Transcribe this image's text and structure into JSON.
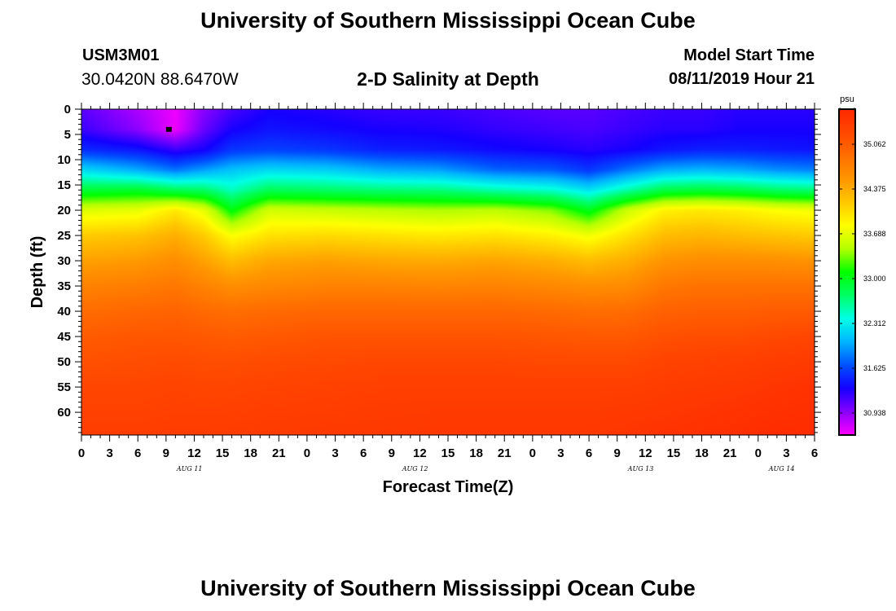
{
  "header": {
    "title": "University of Southern Mississippi Ocean Cube",
    "station_id": "USM3M01",
    "station_coords": "30.0420N 88.6470W",
    "subtitle": "2-D Salinity at Depth",
    "model_start_label": "Model Start Time",
    "model_start_value": "08/11/2019 Hour 21"
  },
  "footer": {
    "title": "University of Southern Mississippi Ocean Cube"
  },
  "chart_data": {
    "type": "heatmap",
    "title": "2-D Salinity at Depth",
    "xlabel": "Forecast Time(Z)",
    "ylabel": "Depth (ft)",
    "y_inverted": true,
    "y_range": [
      0,
      64.5
    ],
    "y_ticks": [
      0,
      5,
      10,
      15,
      20,
      25,
      30,
      35,
      40,
      45,
      50,
      55,
      60
    ],
    "x_range_hours": [
      0,
      78
    ],
    "x_tick_labels": [
      "0",
      "3",
      "6",
      "9",
      "12",
      "15",
      "18",
      "21",
      "0",
      "3",
      "6",
      "9",
      "12",
      "15",
      "18",
      "21",
      "0",
      "3",
      "6",
      "9",
      "12",
      "15",
      "18",
      "21",
      "0",
      "3",
      "6"
    ],
    "date_labels": [
      {
        "text": "AUG 11",
        "hour": 11.5
      },
      {
        "text": "AUG 12",
        "hour": 35.5
      },
      {
        "text": "AUG 13",
        "hour": 59.5
      },
      {
        "text": "AUG 14",
        "hour": 74.5
      }
    ],
    "colorbar": {
      "unit": "psu",
      "min": 30.6,
      "max": 35.6,
      "labels": [
        "35.062",
        "34.375",
        "33.688",
        "33.000",
        "32.312",
        "31.625",
        "30.938"
      ],
      "colors": [
        "#ff00ff",
        "#8a00ff",
        "#1400ff",
        "#0050ff",
        "#00b4ff",
        "#00ffe6",
        "#00ff64",
        "#00ff00",
        "#b4ff00",
        "#ffff00",
        "#ffc800",
        "#ff9600",
        "#ff6e00",
        "#ff4600",
        "#ff2800"
      ]
    },
    "marker": {
      "hour": 9.3,
      "depth": 4
    },
    "depth_levels_ft": [
      0,
      4,
      8,
      12,
      16,
      20,
      25,
      30,
      35,
      40,
      45,
      50,
      55,
      60,
      64.5
    ],
    "time_columns_hours": [
      0,
      6,
      10,
      13,
      16,
      20,
      26,
      32,
      38,
      44,
      50,
      54,
      58,
      62,
      66,
      70,
      74,
      78
    ],
    "values": [
      [
        31.1,
        31.2,
        31.5,
        32.2,
        32.9,
        33.65,
        34.15,
        34.45,
        34.7,
        34.9,
        35.05,
        35.15,
        35.25,
        35.3,
        35.35
      ],
      [
        30.85,
        30.95,
        31.4,
        32.0,
        32.95,
        33.7,
        34.2,
        34.5,
        34.75,
        34.95,
        35.1,
        35.18,
        35.25,
        35.3,
        35.35
      ],
      [
        30.65,
        30.65,
        31.2,
        31.8,
        32.8,
        33.95,
        34.35,
        34.6,
        34.8,
        34.98,
        35.1,
        35.2,
        35.28,
        35.32,
        35.36
      ],
      [
        30.95,
        31.05,
        31.3,
        31.95,
        32.75,
        33.7,
        34.15,
        34.45,
        34.7,
        34.92,
        35.08,
        35.18,
        35.25,
        35.32,
        35.36
      ],
      [
        31.15,
        31.3,
        31.55,
        32.1,
        32.5,
        33.05,
        33.8,
        34.25,
        34.6,
        34.88,
        35.05,
        35.18,
        35.26,
        35.32,
        35.37
      ],
      [
        31.3,
        31.4,
        31.6,
        32.2,
        32.8,
        33.6,
        34.0,
        34.4,
        34.65,
        34.92,
        35.08,
        35.2,
        35.28,
        35.34,
        35.38
      ],
      [
        31.25,
        31.35,
        31.55,
        32.15,
        32.75,
        33.55,
        34.05,
        34.45,
        34.7,
        34.95,
        35.12,
        35.22,
        35.3,
        35.35,
        35.4
      ],
      [
        31.2,
        31.3,
        31.45,
        32.0,
        32.7,
        33.5,
        34.0,
        34.4,
        34.7,
        34.95,
        35.12,
        35.24,
        35.32,
        35.37,
        35.4
      ],
      [
        31.2,
        31.28,
        31.42,
        31.95,
        32.68,
        33.45,
        33.95,
        34.38,
        34.68,
        34.95,
        35.12,
        35.24,
        35.32,
        35.38,
        35.42
      ],
      [
        31.15,
        31.22,
        31.35,
        31.75,
        32.55,
        33.5,
        34.0,
        34.42,
        34.7,
        34.95,
        35.12,
        35.24,
        35.32,
        35.38,
        35.42
      ],
      [
        31.1,
        31.18,
        31.3,
        31.7,
        32.45,
        33.35,
        33.9,
        34.35,
        34.65,
        34.92,
        35.1,
        35.22,
        35.32,
        35.38,
        35.42
      ],
      [
        31.1,
        31.15,
        31.25,
        31.55,
        32.25,
        33.0,
        33.75,
        34.25,
        34.6,
        34.88,
        35.08,
        35.22,
        35.32,
        35.38,
        35.42
      ],
      [
        31.15,
        31.2,
        31.3,
        31.8,
        32.55,
        33.55,
        34.0,
        34.35,
        34.62,
        34.9,
        35.08,
        35.22,
        35.32,
        35.4,
        35.45
      ],
      [
        31.2,
        31.25,
        31.4,
        32.0,
        32.85,
        33.9,
        34.25,
        34.55,
        34.8,
        35.0,
        35.15,
        35.28,
        35.36,
        35.42,
        35.48
      ],
      [
        31.2,
        31.25,
        31.45,
        32.05,
        32.9,
        33.95,
        34.3,
        34.6,
        34.85,
        35.02,
        35.18,
        35.3,
        35.38,
        35.45,
        35.5
      ],
      [
        31.25,
        31.3,
        31.45,
        32.0,
        32.85,
        33.9,
        34.25,
        34.6,
        34.85,
        35.02,
        35.18,
        35.32,
        35.4,
        35.48,
        35.52
      ],
      [
        31.25,
        31.3,
        31.42,
        31.9,
        32.75,
        33.8,
        34.2,
        34.58,
        34.85,
        35.05,
        35.22,
        35.35,
        35.45,
        35.5,
        35.55
      ],
      [
        31.25,
        31.3,
        31.4,
        31.85,
        32.7,
        33.75,
        34.15,
        34.55,
        34.85,
        35.05,
        35.25,
        35.38,
        35.48,
        35.52,
        35.55
      ]
    ]
  }
}
